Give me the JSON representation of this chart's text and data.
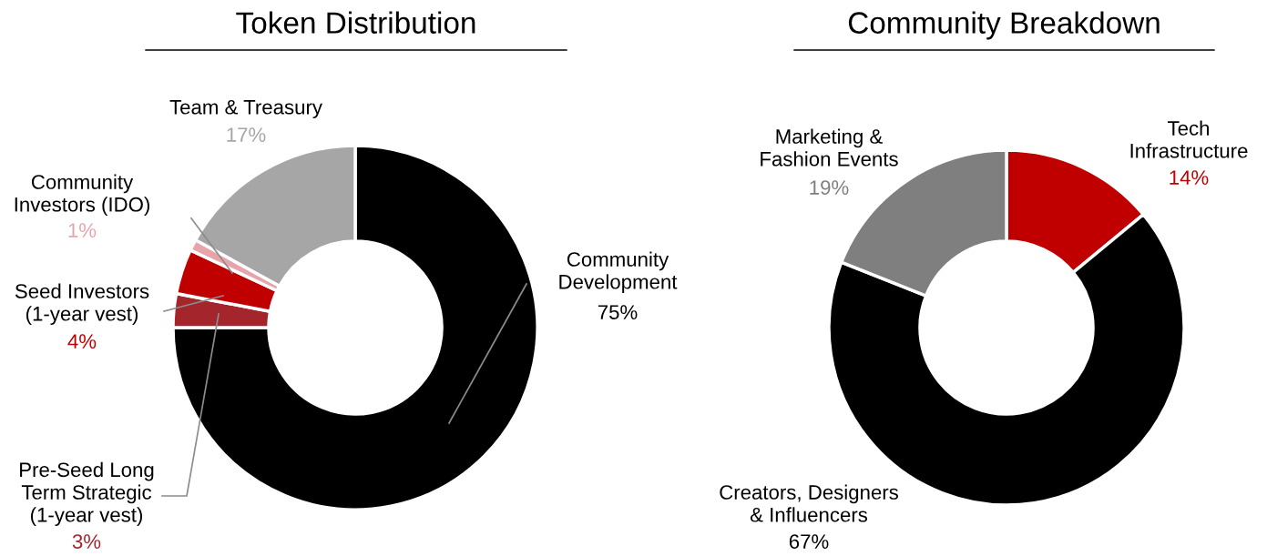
{
  "chart_data": [
    {
      "type": "donut",
      "title": "Token Distribution",
      "categories": [
        "Community\nDevelopment",
        "Pre-Seed Long\nTerm Strategic\n(1-year vest)",
        "Seed Investors\n(1-year vest)",
        "Community\nInvestors (IDO)",
        "Team & Treasury"
      ],
      "values": [
        75,
        3,
        4,
        1,
        17
      ],
      "colors": [
        "#000000",
        "#a4262c",
        "#c00000",
        "#e8a4ab",
        "#a6a6a6"
      ],
      "value_labels": [
        "75%",
        "3%",
        "4%",
        "1%",
        "17%"
      ]
    },
    {
      "type": "donut",
      "title": "Community Breakdown",
      "categories": [
        "Tech\nInfrastructure",
        "Creators, Designers\n& Influencers",
        "Marketing &\nFashion Events"
      ],
      "values": [
        14,
        67,
        19
      ],
      "colors": [
        "#c00000",
        "#000000",
        "#7f7f7f"
      ],
      "value_labels": [
        "14%",
        "67%",
        "19%"
      ]
    }
  ]
}
